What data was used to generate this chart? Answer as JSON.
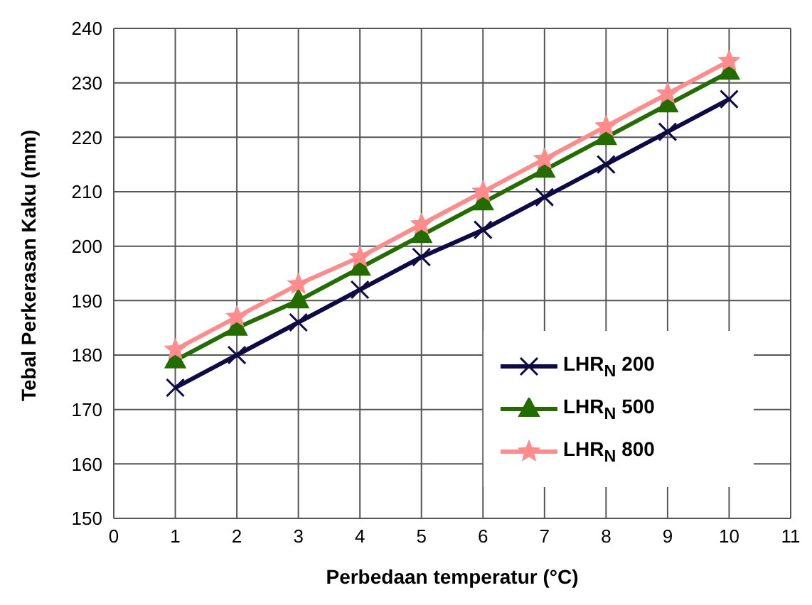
{
  "chart_data": {
    "type": "line",
    "xlabel": "Perbedaan temperatur (°C)",
    "ylabel": "Tebal Perkerasan Kaku (mm)",
    "x": [
      1,
      2,
      3,
      4,
      5,
      6,
      7,
      8,
      9,
      10
    ],
    "series": [
      {
        "name": "LHR$_{N}$ 200",
        "color": "#0d0a45",
        "marker": "cross",
        "values": [
          174,
          180,
          186,
          192,
          198,
          203,
          209,
          215,
          221,
          227
        ]
      },
      {
        "name": "LHR$_{N}$ 500",
        "color": "#246b00",
        "marker": "triangle",
        "values": [
          179,
          185,
          190,
          196,
          202,
          208,
          214,
          220,
          226,
          232
        ]
      },
      {
        "name": "LHR$_{N}$ 800",
        "color": "#ff8c8c",
        "marker": "star",
        "values": [
          181,
          187,
          193,
          198,
          204,
          210,
          216,
          222,
          228,
          234
        ]
      }
    ],
    "xlim": [
      0,
      11
    ],
    "xticks": [
      0,
      1,
      2,
      3,
      4,
      5,
      6,
      7,
      8,
      9,
      10,
      11
    ],
    "ylim": [
      150,
      240
    ],
    "yticks": [
      150,
      160,
      170,
      180,
      190,
      200,
      210,
      220,
      230,
      240
    ],
    "grid": true,
    "legend": "bottom right",
    "line_style": "solid"
  }
}
